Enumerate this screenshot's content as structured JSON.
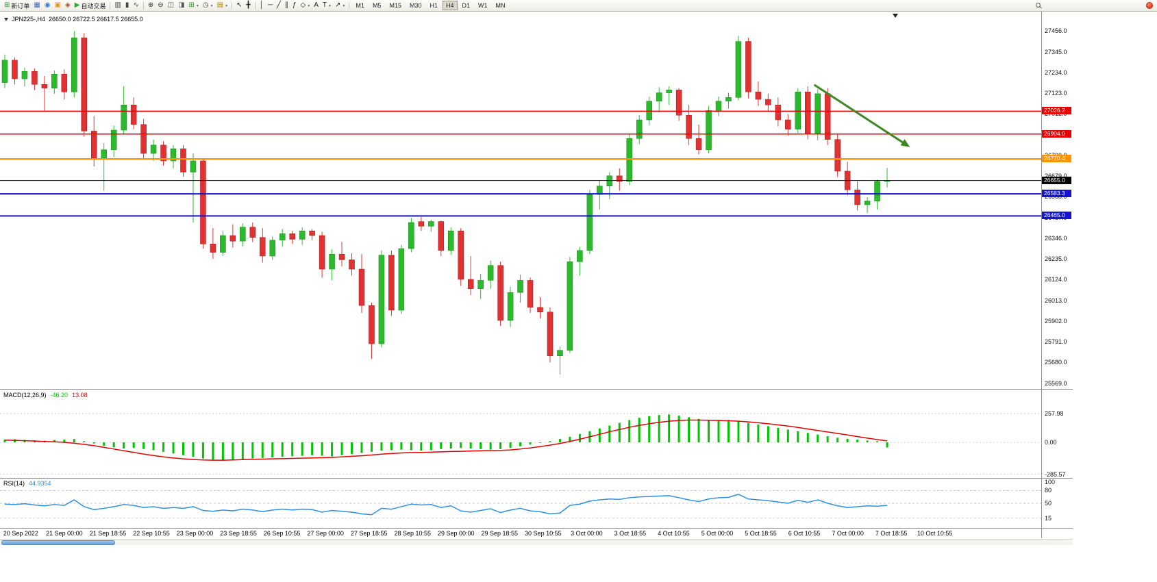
{
  "toolbar": {
    "caret_glyph": "▾",
    "groups": [
      {
        "name": "file",
        "items": [
          {
            "name": "new-order-button",
            "glyph": "⊞",
            "color": "#2e9e2e",
            "label": "新订单"
          },
          {
            "name": "charts-icon",
            "glyph": "▦",
            "color": "#4a6fb5"
          },
          {
            "name": "market-watch-icon",
            "glyph": "◉",
            "color": "#2e7dd1"
          },
          {
            "name": "navigator-icon",
            "glyph": "▣",
            "color": "#d8a01d"
          },
          {
            "name": "terminal-icon",
            "glyph": "◈",
            "color": "#c23b2e"
          },
          {
            "name": "autotrading-button",
            "glyph": "▶",
            "color": "#2eaa2e",
            "label": "自动交易"
          }
        ]
      },
      {
        "name": "chart-type",
        "items": [
          {
            "name": "bar-chart-icon",
            "glyph": "▥",
            "color": "#444"
          },
          {
            "name": "candlestick-chart-icon",
            "glyph": "▮",
            "color": "#444"
          },
          {
            "name": "line-chart-icon",
            "glyph": "∿",
            "color": "#444"
          }
        ]
      },
      {
        "name": "zoom-windows",
        "items": [
          {
            "name": "zoom-in-icon",
            "glyph": "⊕",
            "color": "#333"
          },
          {
            "name": "zoom-out-icon",
            "glyph": "⊖",
            "color": "#333"
          },
          {
            "name": "tile-windows-icon",
            "glyph": "◫",
            "color": "#555"
          },
          {
            "name": "cascade-windows-icon",
            "glyph": "◨",
            "color": "#555"
          },
          {
            "name": "new-chart-icon",
            "glyph": "⊞",
            "color": "#2e9e2e",
            "caret": true
          },
          {
            "name": "period-icon",
            "glyph": "◷",
            "color": "#444",
            "caret": true
          },
          {
            "name": "template-icon",
            "glyph": "▤",
            "color": "#b8860b",
            "caret": true
          }
        ]
      },
      {
        "name": "cursor-tools",
        "items": [
          {
            "name": "cursor-icon",
            "glyph": "↖",
            "color": "#222"
          },
          {
            "name": "crosshair-icon",
            "glyph": "╋",
            "color": "#222"
          }
        ]
      },
      {
        "name": "draw-tools",
        "items": [
          {
            "name": "vertical-line-icon",
            "glyph": "│",
            "color": "#222"
          },
          {
            "name": "horizontal-line-icon",
            "glyph": "─",
            "color": "#222"
          },
          {
            "name": "trendline-icon",
            "glyph": "╱",
            "color": "#222"
          },
          {
            "name": "channel-icon",
            "glyph": "∥",
            "color": "#222"
          },
          {
            "name": "fibonacci-icon",
            "glyph": "ƒ",
            "color": "#222"
          },
          {
            "name": "shapes-icon",
            "glyph": "◇",
            "color": "#222",
            "caret": true
          },
          {
            "name": "text-icon",
            "glyph": "A",
            "color": "#222"
          },
          {
            "name": "label-icon",
            "glyph": "T",
            "color": "#222",
            "caret": true
          },
          {
            "name": "arrows-icon",
            "glyph": "↗",
            "color": "#222",
            "caret": true
          }
        ]
      }
    ],
    "timeframes": [
      "M1",
      "M5",
      "M15",
      "M30",
      "H1",
      "H4",
      "D1",
      "W1",
      "MN"
    ],
    "active_timeframe": "H4"
  },
  "chart_data": [
    {
      "type": "candlestick",
      "symbol": "JPN225-,H4",
      "ohlc_display": "26650.0 26722.5 26617.5 26655.0",
      "ylim": [
        25538,
        27560
      ],
      "y_ticks": [
        "27456.0",
        "27345.0",
        "27234.0",
        "27123.0",
        "27012.0",
        "26901.0",
        "26790.0",
        "26679.0",
        "26568.0",
        "26457.0",
        "26346.0",
        "26235.0",
        "26124.0",
        "26013.0",
        "25902.0",
        "25791.0",
        "25680.0",
        "25569.0"
      ],
      "x_labels": [
        "20 Sep 2022",
        "21 Sep 00:00",
        "21 Sep 18:55",
        "22 Sep 10:55",
        "23 Sep 00:00",
        "23 Sep 18:55",
        "26 Sep 10:55",
        "27 Sep 00:00",
        "27 Sep 18:55",
        "28 Sep 10:55",
        "29 Sep 00:00",
        "29 Sep 18:55",
        "30 Sep 10:55",
        "3 Oct 00:00",
        "3 Oct 18:55",
        "4 Oct 10:55",
        "5 Oct 00:00",
        "5 Oct 18:55",
        "6 Oct 10:55",
        "7 Oct 00:00",
        "7 Oct 18:55",
        "10 Oct 10:55"
      ],
      "x_label_start_frac": 0.02,
      "x_label_step_frac": 0.0418,
      "first_x_frac": 0.0046,
      "last_x_frac": 0.852,
      "up_color": "#2db92d",
      "up_border": "#118811",
      "down_color": "#e03232",
      "down_border": "#a61515",
      "hlines": [
        {
          "price": 27026.2,
          "label": "27026.2",
          "color": "#e80000",
          "width": 1.6
        },
        {
          "price": 26904.0,
          "label": "26904.0",
          "color": "#e80000",
          "width": 1.6
        },
        {
          "price": 26770.4,
          "label": "26770.4",
          "color": "#ff9400",
          "width": 2.4
        },
        {
          "price": 26655.0,
          "label": "26655.0",
          "color": "#000000",
          "width": 1
        },
        {
          "price": 26583.3,
          "label": "26583.3",
          "color": "#1414d2",
          "width": 2
        },
        {
          "price": 26465.0,
          "label": "26465.0",
          "color": "#1414d2",
          "width": 2
        }
      ],
      "arrow": {
        "from_x_frac": 0.782,
        "from_price": 27168,
        "to_x_frac": 0.869,
        "to_price": 26852,
        "color": "#3f8724"
      },
      "candles": [
        [
          27180,
          27330,
          27150,
          27300
        ],
        [
          27300,
          27315,
          27170,
          27200
        ],
        [
          27200,
          27260,
          27160,
          27240
        ],
        [
          27240,
          27255,
          27140,
          27170
        ],
        [
          27170,
          27215,
          27030,
          27150
        ],
        [
          27150,
          27245,
          27120,
          27225
        ],
        [
          27225,
          27250,
          27090,
          27130
        ],
        [
          27130,
          27456,
          27100,
          27420
        ],
        [
          27420,
          27445,
          26890,
          26920
        ],
        [
          26920,
          27000,
          26730,
          26775
        ],
        [
          26775,
          26855,
          26600,
          26820
        ],
        [
          26820,
          26950,
          26780,
          26925
        ],
        [
          26925,
          27160,
          26900,
          27060
        ],
        [
          27060,
          27100,
          26930,
          26955
        ],
        [
          26955,
          26985,
          26775,
          26800
        ],
        [
          26800,
          26875,
          26760,
          26845
        ],
        [
          26845,
          26865,
          26735,
          26760
        ],
        [
          26760,
          26845,
          26720,
          26825
        ],
        [
          26825,
          26845,
          26675,
          26700
        ],
        [
          26700,
          26800,
          26430,
          26760
        ],
        [
          26760,
          26770,
          26290,
          26315
        ],
        [
          26315,
          26400,
          26235,
          26270
        ],
        [
          26270,
          26385,
          26250,
          26360
        ],
        [
          26360,
          26420,
          26295,
          26330
        ],
        [
          26330,
          26425,
          26300,
          26405
        ],
        [
          26405,
          26430,
          26325,
          26350
        ],
        [
          26350,
          26400,
          26215,
          26250
        ],
        [
          26250,
          26355,
          26230,
          26335
        ],
        [
          26335,
          26395,
          26300,
          26370
        ],
        [
          26370,
          26385,
          26315,
          26340
        ],
        [
          26340,
          26405,
          26310,
          26385
        ],
        [
          26385,
          26395,
          26335,
          26360
        ],
        [
          26360,
          26380,
          26135,
          26180
        ],
        [
          26180,
          26285,
          26120,
          26260
        ],
        [
          26260,
          26325,
          26195,
          26230
        ],
        [
          26230,
          26265,
          26145,
          26180
        ],
        [
          26180,
          26260,
          25945,
          25985
        ],
        [
          25985,
          26000,
          25700,
          25780
        ],
        [
          25780,
          26280,
          25760,
          26255
        ],
        [
          26255,
          26280,
          25930,
          25960
        ],
        [
          25960,
          26310,
          25940,
          26290
        ],
        [
          26290,
          26455,
          26270,
          26430
        ],
        [
          26435,
          26460,
          26385,
          26410
        ],
        [
          26410,
          26445,
          26380,
          26435
        ],
        [
          26435,
          26440,
          26250,
          26280
        ],
        [
          26280,
          26405,
          26255,
          26385
        ],
        [
          26385,
          26400,
          26090,
          26125
        ],
        [
          26125,
          26250,
          26040,
          26075
        ],
        [
          26075,
          26155,
          26020,
          26120
        ],
        [
          26120,
          26225,
          26075,
          26200
        ],
        [
          26200,
          26220,
          25875,
          25905
        ],
        [
          25905,
          26085,
          25870,
          26055
        ],
        [
          26055,
          26150,
          26000,
          26120
        ],
        [
          26120,
          26135,
          25945,
          25975
        ],
        [
          25975,
          26030,
          25915,
          25950
        ],
        [
          25950,
          25975,
          25680,
          25715
        ],
        [
          25715,
          25765,
          25615,
          25745
        ],
        [
          25745,
          26245,
          25730,
          26220
        ],
        [
          26220,
          26300,
          26145,
          26280
        ],
        [
          26280,
          26605,
          26260,
          26580
        ],
        [
          26580,
          26655,
          26500,
          26625
        ],
        [
          26625,
          26700,
          26555,
          26680
        ],
        [
          26680,
          26720,
          26600,
          26650
        ],
        [
          26650,
          26905,
          26630,
          26880
        ],
        [
          26880,
          27005,
          26850,
          26980
        ],
        [
          26980,
          27105,
          26950,
          27080
        ],
        [
          27080,
          27155,
          27020,
          27125
        ],
        [
          27125,
          27160,
          27060,
          27140
        ],
        [
          27140,
          27150,
          26975,
          27005
        ],
        [
          27005,
          27060,
          26845,
          26880
        ],
        [
          26880,
          26955,
          26795,
          26820
        ],
        [
          26820,
          27055,
          26800,
          27030
        ],
        [
          27030,
          27105,
          27000,
          27080
        ],
        [
          27080,
          27125,
          27040,
          27100
        ],
        [
          27100,
          27430,
          27085,
          27400
        ],
        [
          27400,
          27420,
          27095,
          27130
        ],
        [
          27130,
          27185,
          27055,
          27090
        ],
        [
          27090,
          27120,
          27030,
          27060
        ],
        [
          27060,
          27100,
          26945,
          26980
        ],
        [
          26980,
          27010,
          26895,
          26930
        ],
        [
          26930,
          27150,
          26910,
          27130
        ],
        [
          27130,
          27160,
          26875,
          26905
        ],
        [
          26905,
          27145,
          26870,
          27120
        ],
        [
          27120,
          27150,
          26845,
          26875
        ],
        [
          26875,
          26905,
          26675,
          26705
        ],
        [
          26705,
          26755,
          26575,
          26605
        ],
        [
          26605,
          26650,
          26495,
          26525
        ],
        [
          26525,
          26565,
          26480,
          26545
        ],
        [
          26545,
          26660,
          26500,
          26650
        ],
        [
          26650,
          26722.5,
          26617.5,
          26655
        ]
      ]
    },
    {
      "type": "bar",
      "label": "MACD(12,26,9)",
      "value_display": "-46.20",
      "signal_display": "13.08",
      "ylim": [
        -319,
        473
      ],
      "y_ticks": [
        "257.98",
        "0.00",
        "-285.57"
      ],
      "histogram_color": "#00c400",
      "signal_color": "#e00000",
      "values": [
        25,
        28,
        22,
        18,
        15,
        20,
        25,
        30,
        10,
        -10,
        -30,
        -45,
        -55,
        -50,
        -60,
        -70,
        -85,
        -100,
        -115,
        -130,
        -145,
        -155,
        -160,
        -155,
        -150,
        -145,
        -140,
        -135,
        -130,
        -125,
        -120,
        -115,
        -120,
        -125,
        -115,
        -105,
        -95,
        -85,
        -75,
        -70,
        -65,
        -70,
        -75,
        -70,
        -60,
        -55,
        -50,
        -55,
        -60,
        -65,
        -60,
        -50,
        -35,
        -20,
        -5,
        10,
        30,
        50,
        75,
        100,
        125,
        150,
        175,
        200,
        220,
        235,
        245,
        250,
        240,
        225,
        210,
        200,
        195,
        200,
        190,
        175,
        160,
        145,
        130,
        115,
        100,
        85,
        70,
        55,
        42,
        32,
        24,
        16,
        10,
        -46
      ],
      "signal": [
        20,
        18,
        15,
        12,
        8,
        5,
        0,
        -8,
        -18,
        -30,
        -45,
        -60,
        -75,
        -90,
        -105,
        -118,
        -130,
        -140,
        -148,
        -154,
        -158,
        -160,
        -160,
        -158,
        -155,
        -152,
        -150,
        -148,
        -146,
        -144,
        -142,
        -140,
        -138,
        -135,
        -130,
        -125,
        -120,
        -113,
        -106,
        -100,
        -95,
        -92,
        -90,
        -88,
        -85,
        -82,
        -80,
        -78,
        -76,
        -74,
        -72,
        -68,
        -60,
        -50,
        -38,
        -25,
        -10,
        8,
        28,
        50,
        72,
        95,
        115,
        135,
        152,
        167,
        180,
        190,
        196,
        200,
        200,
        198,
        196,
        194,
        190,
        184,
        176,
        167,
        157,
        146,
        134,
        120,
        106,
        93,
        80,
        66,
        52,
        38,
        25,
        13
      ]
    },
    {
      "type": "line",
      "label": "RSI(14)",
      "value_display": "44.9354",
      "ylim": [
        0,
        100
      ],
      "levels": [
        80,
        50,
        15
      ],
      "y_ticks": [
        "100",
        "80",
        "50",
        "15"
      ],
      "line_color": "#2f8fe0",
      "values": [
        48,
        47,
        49,
        46,
        44,
        47,
        45,
        58,
        42,
        35,
        38,
        42,
        47,
        45,
        40,
        42,
        38,
        40,
        38,
        42,
        33,
        31,
        34,
        32,
        36,
        34,
        30,
        34,
        36,
        34,
        36,
        35,
        29,
        33,
        31,
        29,
        25,
        23,
        38,
        36,
        42,
        48,
        46,
        47,
        40,
        44,
        32,
        29,
        33,
        37,
        28,
        34,
        38,
        32,
        30,
        25,
        27,
        45,
        48,
        55,
        58,
        60,
        59,
        63,
        65,
        66,
        67,
        68,
        63,
        58,
        54,
        60,
        63,
        64,
        71,
        60,
        58,
        56,
        53,
        50,
        57,
        52,
        58,
        50,
        44,
        40,
        42,
        44,
        43,
        44.9
      ]
    }
  ]
}
